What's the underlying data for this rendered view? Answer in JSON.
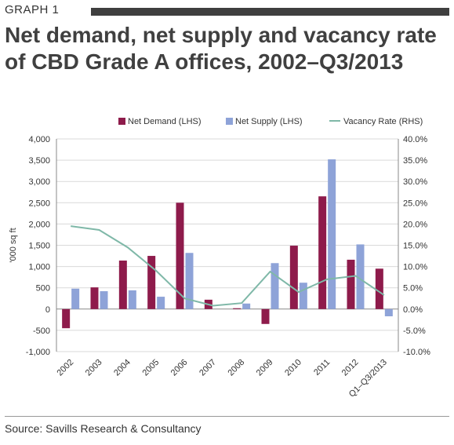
{
  "header": {
    "graph_label": "GRAPH 1"
  },
  "title": "Net demand, net supply and vacancy rate of CBD Grade A offices, 2002–Q3/2013",
  "source": "Source: Savills Research & Consultancy",
  "colors": {
    "net_demand": "#8e1b4b",
    "net_supply": "#8ea3d8",
    "vacancy": "#7fb8a8",
    "header_bar": "#3f3f3f"
  },
  "chart_data": {
    "type": "bar",
    "categories": [
      "2002",
      "2003",
      "2004",
      "2005",
      "2006",
      "2007",
      "2008",
      "2009",
      "2010",
      "2011",
      "2012",
      "Q1–Q3/2013"
    ],
    "series": [
      {
        "name": "Net Demand (LHS)",
        "type": "bar",
        "axis": "left",
        "values": [
          -450,
          510,
          1140,
          1250,
          2500,
          220,
          20,
          -350,
          1490,
          2650,
          1160,
          950
        ]
      },
      {
        "name": "Net Supply (LHS)",
        "type": "bar",
        "axis": "left",
        "values": [
          480,
          420,
          440,
          290,
          1320,
          0,
          130,
          1080,
          620,
          3520,
          1520,
          -170
        ]
      },
      {
        "name": "Vacancy Rate (RHS)",
        "type": "line",
        "axis": "right",
        "values": [
          19.5,
          18.6,
          14.5,
          9.0,
          2.5,
          0.8,
          1.4,
          8.8,
          4.0,
          7.0,
          7.8,
          3.3
        ]
      }
    ],
    "ylabel": "'000 sq ft",
    "ylim": [
      -1000,
      4000
    ],
    "yticks": [
      -1000,
      -500,
      0,
      500,
      1000,
      1500,
      2000,
      2500,
      3000,
      3500,
      4000
    ],
    "ytick_labels": [
      "-1,000",
      "-500",
      "0",
      "500",
      "1,000",
      "1,500",
      "2,000",
      "2,500",
      "3,000",
      "3,500",
      "4,000"
    ],
    "y2lim": [
      -10,
      40
    ],
    "y2ticks": [
      -10,
      -5,
      0,
      5,
      10,
      15,
      20,
      25,
      30,
      35,
      40
    ],
    "y2tick_labels": [
      "-10.0%",
      "-5.0%",
      "0.0%",
      "5.0%",
      "10.0%",
      "15.0%",
      "20.0%",
      "25.0%",
      "30.0%",
      "35.0%",
      "40.0%"
    ],
    "grid": true,
    "legend": "top"
  }
}
